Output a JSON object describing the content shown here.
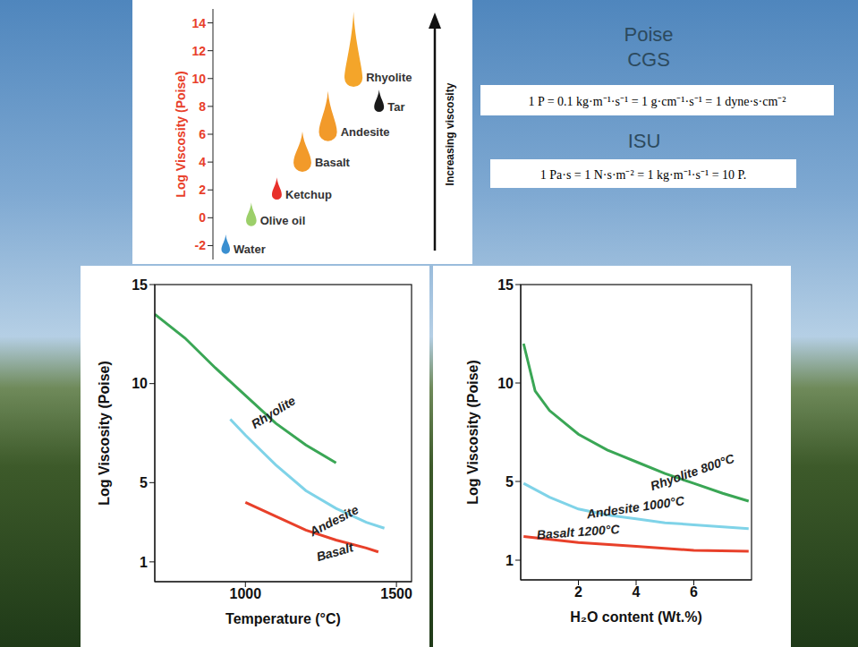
{
  "chart_data": [
    {
      "type": "drop",
      "y_label": "Log Viscosity (Poise)",
      "annotation": "Increasing viscosity",
      "categories": [
        "Water",
        "Olive oil",
        "Ketchup",
        "Basalt",
        "Andesite",
        "Rhyolite",
        "Tar"
      ],
      "low": [
        -2.6,
        -0.6,
        1.3,
        3.3,
        5.5,
        9.4,
        7.6
      ],
      "high": [
        -1.2,
        1.1,
        2.9,
        6.2,
        9.1,
        14.8,
        9.2
      ],
      "colors": [
        "#3a8fd0",
        "#9ccf6a",
        "#e8302a",
        "#f29a2a",
        "#f29a2a",
        "#f4a52a",
        "#1a1a1a"
      ],
      "ylim": [
        -3,
        15
      ],
      "yticks": [
        -2,
        0,
        2,
        4,
        6,
        8,
        10,
        12,
        14
      ],
      "tick_labels": "y"
    },
    {
      "type": "line",
      "x_label": "Temperature (°C)",
      "y_label": "Log Viscosity (Poise)",
      "xlim": [
        700,
        1550
      ],
      "xticks": [
        1000,
        1500
      ],
      "ylim": [
        0,
        15
      ],
      "yticks": [
        1,
        5,
        10,
        15
      ],
      "series": [
        {
          "name": "Rhyolite",
          "color": "#3aa655",
          "x": [
            700,
            800,
            900,
            1000,
            1100,
            1200,
            1300
          ],
          "values": [
            13.5,
            12.3,
            10.8,
            9.4,
            8.0,
            6.9,
            6.0
          ]
        },
        {
          "name": "Andesite",
          "color": "#7fd3e8",
          "x": [
            950,
            1000,
            1100,
            1200,
            1300,
            1400,
            1460
          ],
          "values": [
            8.2,
            7.4,
            5.9,
            4.6,
            3.7,
            3.0,
            2.7
          ]
        },
        {
          "name": "Basalt",
          "color": "#e8402a",
          "x": [
            1000,
            1100,
            1200,
            1300,
            1400,
            1440
          ],
          "values": [
            4.0,
            3.3,
            2.6,
            2.1,
            1.7,
            1.5
          ]
        }
      ]
    },
    {
      "type": "line",
      "x_label": "H₂O content (Wt.%)",
      "y_label": "Log Viscosity (Poise)",
      "xlim": [
        0,
        8
      ],
      "xticks": [
        2,
        4,
        6
      ],
      "ylim": [
        0,
        15
      ],
      "yticks": [
        1,
        5,
        10,
        15
      ],
      "series": [
        {
          "name": "Rhyolite 800°C",
          "color": "#3aa655",
          "x": [
            0.1,
            0.5,
            1,
            2,
            3,
            4,
            5,
            6,
            7,
            7.9
          ],
          "values": [
            12.0,
            9.6,
            8.6,
            7.4,
            6.6,
            6.0,
            5.4,
            4.9,
            4.4,
            4.0
          ]
        },
        {
          "name": "Andesite 1000°C",
          "color": "#7fd3e8",
          "x": [
            0.1,
            1,
            2,
            3,
            4,
            5,
            6,
            7.9
          ],
          "values": [
            4.9,
            4.2,
            3.6,
            3.3,
            3.1,
            2.9,
            2.8,
            2.6
          ]
        },
        {
          "name": "Basalt 1200°C",
          "color": "#e8402a",
          "x": [
            0.1,
            2,
            4,
            6,
            7.9
          ],
          "values": [
            2.2,
            1.9,
            1.7,
            1.5,
            1.45
          ]
        }
      ]
    }
  ],
  "units": {
    "title": "Poise",
    "cgs_label": "CGS",
    "cgs_formula": "1 P = 0.1 kg·m⁻¹·s⁻¹ = 1 g·cm⁻¹·s⁻¹ = 1 dyne·s·cm⁻²",
    "isu_label": "ISU",
    "isu_formula": "1 Pa·s = 1 N·s·m⁻² = 1 kg·m⁻¹·s⁻¹ = 10 P."
  }
}
